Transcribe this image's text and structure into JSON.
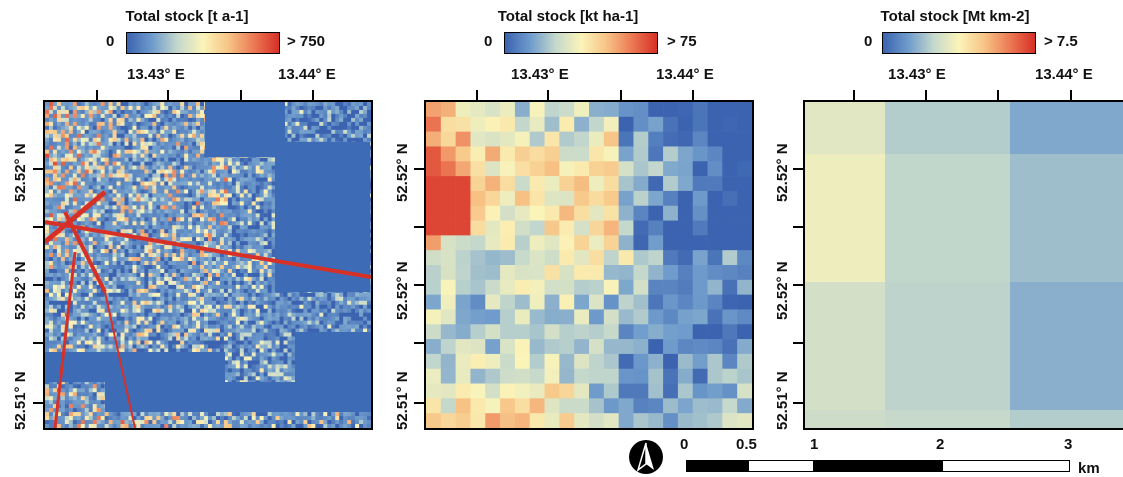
{
  "panels": [
    {
      "legend_title": "Total stock [t a-1]",
      "legend_min": "0",
      "legend_max": "> 750",
      "lon_ticks": [
        "13.43° E",
        "13.44° E"
      ],
      "lat_ticks": [
        "52.52° N",
        "52.52° N",
        "52.51° N"
      ],
      "resolution": "fine"
    },
    {
      "legend_title": "Total stock [kt ha-1]",
      "legend_min": "0",
      "legend_max": "> 75",
      "lon_ticks": [
        "13.43° E",
        "13.44° E"
      ],
      "lat_ticks": [
        "52.52° N",
        "52.52° N",
        "52.51° N"
      ],
      "resolution": "100 m grid"
    },
    {
      "legend_title": "Total stock [Mt km-2]",
      "legend_min": "0",
      "legend_max": "> 7.5",
      "lon_ticks": [
        "13.43° E",
        "13.44° E"
      ],
      "lat_ticks": [
        "52.52° N",
        "52.52° N",
        "52.51° N"
      ],
      "resolution": "1 km grid"
    }
  ],
  "colormap": [
    "#3b63b0",
    "#6f9ccc",
    "#c4d8cc",
    "#fbf4b9",
    "#f7c486",
    "#ec7a55",
    "#d73027"
  ],
  "north_arrow_icon": "north-arrow-icon",
  "scalebar": {
    "labels": [
      "0",
      "0.5",
      "1",
      "2",
      "3"
    ],
    "unit": "km"
  }
}
